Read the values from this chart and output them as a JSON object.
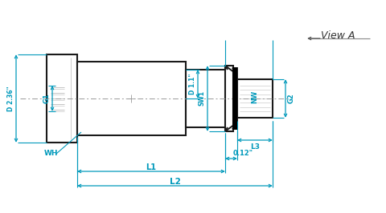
{
  "bg_color": "#ffffff",
  "line_color": "#1a1a1a",
  "dim_color": "#0099bb",
  "dash_color": "#999999",
  "dim_labels": {
    "D236": "D 2.36\"",
    "G1": "G1",
    "WH": "WH",
    "L1": "L1",
    "L2": "L2",
    "D11": "D 1.1\"",
    "SW1": "SW1",
    "L3": "L3",
    "NW": "NW",
    "G2": "G2",
    "dim012": "0.12\""
  },
  "view_a": "View A"
}
